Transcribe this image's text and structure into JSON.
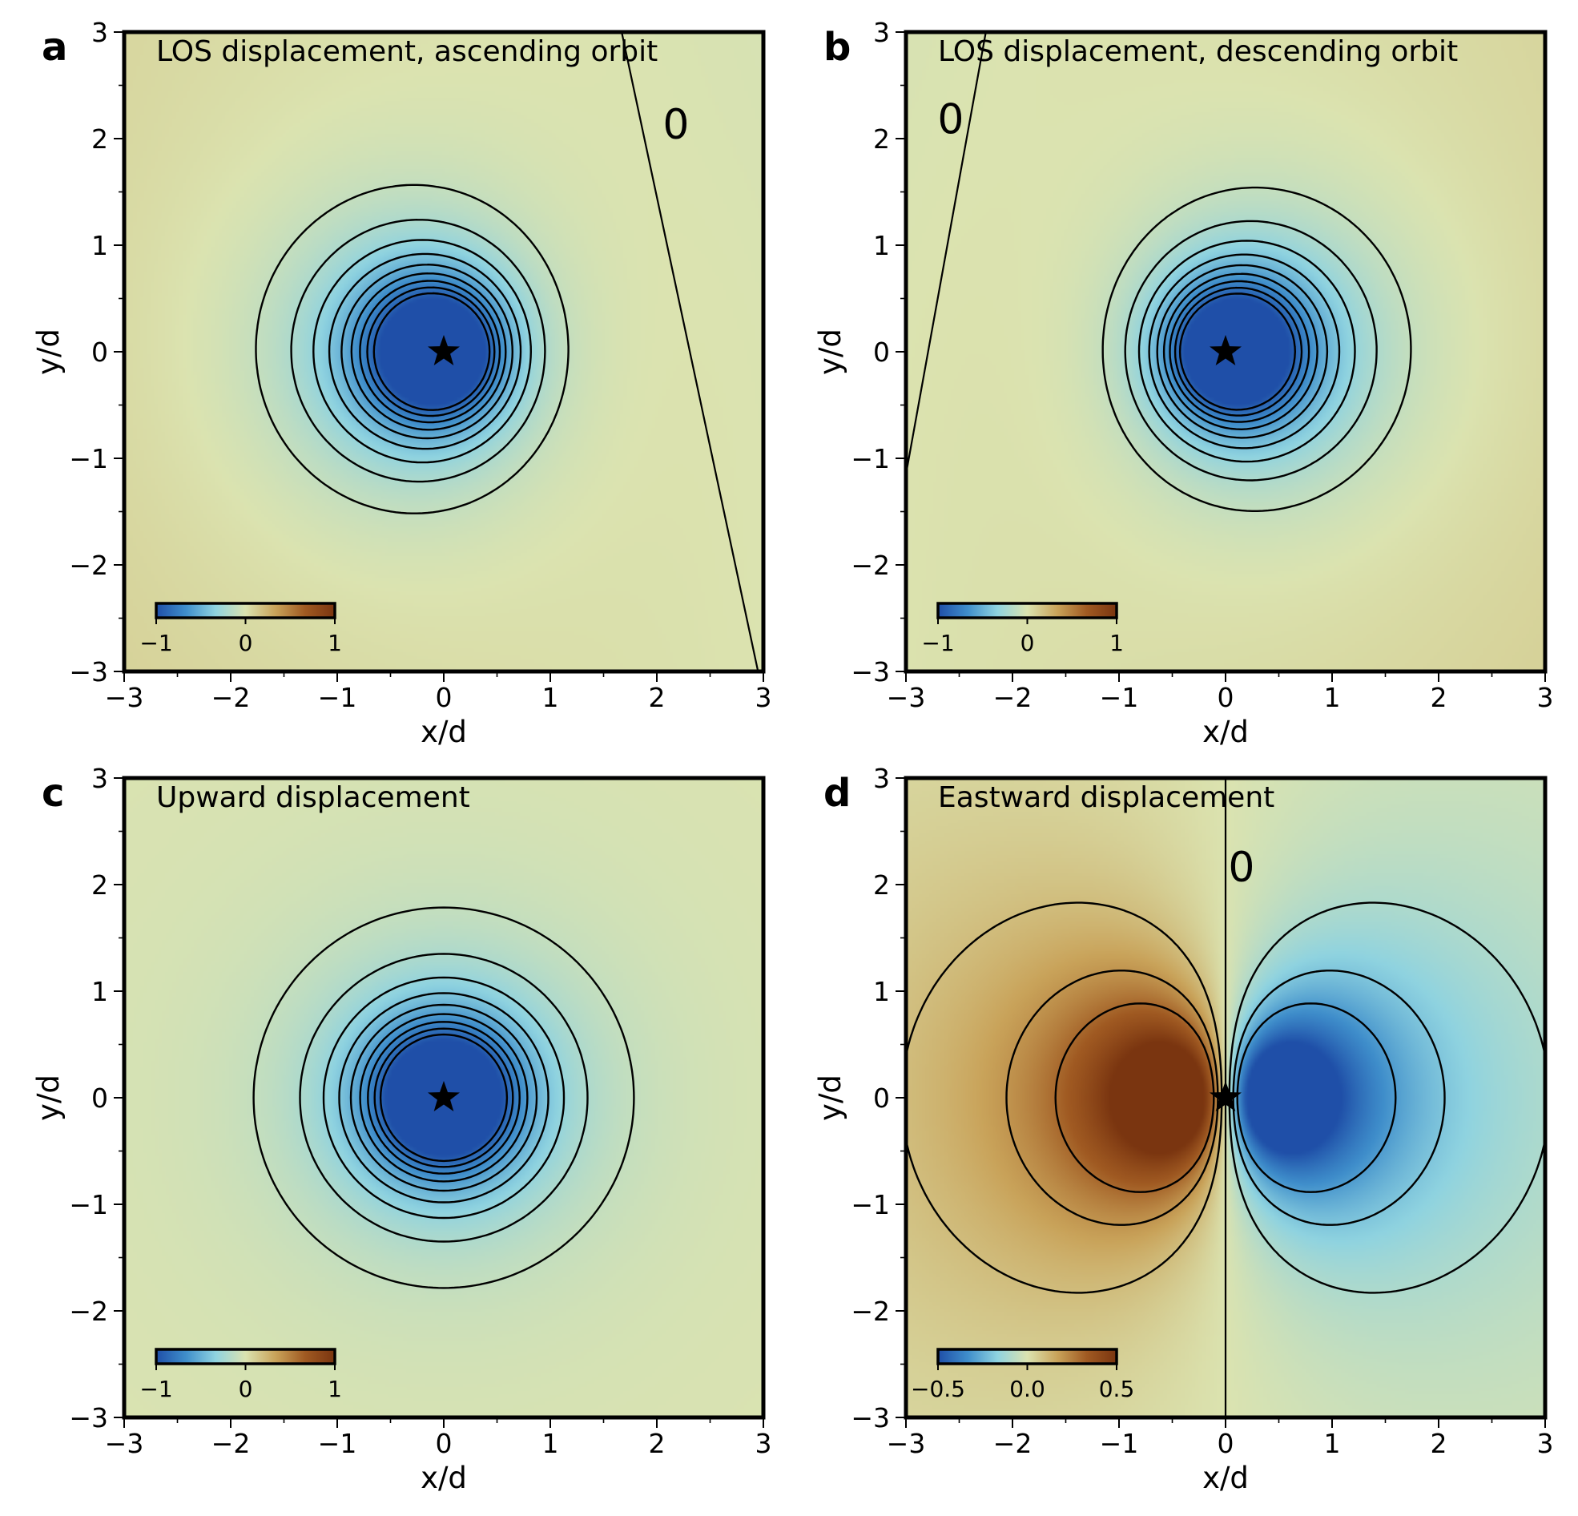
{
  "chart_data": [
    {
      "type": "heatmap",
      "panel": "a",
      "field": "los_ascending",
      "title": "LOS displacement, ascending orbit",
      "xlabel": "x/d",
      "ylabel": "y/d",
      "xlim": [
        -3,
        3
      ],
      "ylim": [
        -3,
        3
      ],
      "xticks": [
        -3,
        -2,
        -1,
        0,
        1,
        2,
        3
      ],
      "yticks": [
        -3,
        -2,
        -1,
        0,
        1,
        2,
        3
      ],
      "xtick_labels": [
        "−3",
        "−2",
        "−1",
        "0",
        "1",
        "2",
        "3"
      ],
      "ytick_labels": [
        "−3",
        "−2",
        "−1",
        "0",
        "1",
        "2",
        "3"
      ],
      "source": [
        0,
        0
      ],
      "zero_line": [
        [
          1.67,
          3
        ],
        [
          2.95,
          -3
        ]
      ],
      "contour_label": {
        "text": "0",
        "x": 2.18,
        "y": 2.0
      },
      "contour_levels": [
        -0.9,
        -0.8,
        -0.7,
        -0.6,
        -0.5,
        -0.4,
        -0.3,
        -0.2,
        -0.1
      ],
      "colorbar": {
        "min": -1,
        "max": 1,
        "tick_values": [
          -1,
          0,
          1
        ],
        "tick_labels": [
          "−1",
          "0",
          "1"
        ]
      },
      "colormap": [
        "#1f4fa8",
        "#3f8ecb",
        "#8fd3e0",
        "#dbe3b0",
        "#c9a35a",
        "#a05a22",
        "#7a3510"
      ]
    },
    {
      "type": "heatmap",
      "panel": "b",
      "field": "los_descending",
      "title": "LOS displacement, descending orbit",
      "xlabel": "x/d",
      "ylabel": "y/d",
      "xlim": [
        -3,
        3
      ],
      "ylim": [
        -3,
        3
      ],
      "xticks": [
        -3,
        -2,
        -1,
        0,
        1,
        2,
        3
      ],
      "yticks": [
        -3,
        -2,
        -1,
        0,
        1,
        2,
        3
      ],
      "xtick_labels": [
        "−3",
        "−2",
        "−1",
        "0",
        "1",
        "2",
        "3"
      ],
      "ytick_labels": [
        "−3",
        "−2",
        "−1",
        "0",
        "1",
        "2",
        "3"
      ],
      "source": [
        0,
        0
      ],
      "zero_line": [
        [
          -2.25,
          3
        ],
        [
          -3,
          -1.15
        ]
      ],
      "contour_label": {
        "text": "0",
        "x": -2.58,
        "y": 2.05
      },
      "contour_levels": [
        -0.9,
        -0.8,
        -0.7,
        -0.6,
        -0.5,
        -0.4,
        -0.3,
        -0.2,
        -0.1
      ],
      "colorbar": {
        "min": -1,
        "max": 1,
        "tick_values": [
          -1,
          0,
          1
        ],
        "tick_labels": [
          "−1",
          "0",
          "1"
        ]
      },
      "colormap": [
        "#1f4fa8",
        "#3f8ecb",
        "#8fd3e0",
        "#dbe3b0",
        "#c9a35a",
        "#a05a22",
        "#7a3510"
      ]
    },
    {
      "type": "heatmap",
      "panel": "c",
      "field": "upward",
      "title": "Upward displacement",
      "xlabel": "x/d",
      "ylabel": "y/d",
      "xlim": [
        -3,
        3
      ],
      "ylim": [
        -3,
        3
      ],
      "xticks": [
        -3,
        -2,
        -1,
        0,
        1,
        2,
        3
      ],
      "yticks": [
        -3,
        -2,
        -1,
        0,
        1,
        2,
        3
      ],
      "xtick_labels": [
        "−3",
        "−2",
        "−1",
        "0",
        "1",
        "2",
        "3"
      ],
      "ytick_labels": [
        "−3",
        "−2",
        "−1",
        "0",
        "1",
        "2",
        "3"
      ],
      "source": [
        0,
        0
      ],
      "contour_levels": [
        -0.9,
        -0.8,
        -0.7,
        -0.6,
        -0.5,
        -0.4,
        -0.3,
        -0.2,
        -0.1
      ],
      "colorbar": {
        "min": -1,
        "max": 1,
        "tick_values": [
          -1,
          0,
          1
        ],
        "tick_labels": [
          "−1",
          "0",
          "1"
        ]
      },
      "colormap": [
        "#1f4fa8",
        "#3f8ecb",
        "#8fd3e0",
        "#dbe3b0",
        "#c9a35a",
        "#a05a22",
        "#7a3510"
      ]
    },
    {
      "type": "heatmap",
      "panel": "d",
      "field": "eastward",
      "title": "Eastward displacement",
      "xlabel": "x/d",
      "ylabel": "y/d",
      "xlim": [
        -3,
        3
      ],
      "ylim": [
        -3,
        3
      ],
      "xticks": [
        -3,
        -2,
        -1,
        0,
        1,
        2,
        3
      ],
      "yticks": [
        -3,
        -2,
        -1,
        0,
        1,
        2,
        3
      ],
      "xtick_labels": [
        "−3",
        "−2",
        "−1",
        "0",
        "1",
        "2",
        "3"
      ],
      "ytick_labels": [
        "−3",
        "−2",
        "−1",
        "0",
        "1",
        "2",
        "3"
      ],
      "source": [
        0,
        0
      ],
      "zero_line": [
        [
          0,
          3
        ],
        [
          0,
          -3
        ]
      ],
      "contour_label": {
        "text": "0",
        "x": 0.15,
        "y": 2.03
      },
      "contour_levels": [
        -0.3,
        -0.2,
        -0.1,
        0.1,
        0.2,
        0.3
      ],
      "colorbar": {
        "min": -0.5,
        "max": 0.5,
        "tick_values": [
          -0.5,
          0,
          0.5
        ],
        "tick_labels": [
          "−0.5",
          "0.0",
          "0.5"
        ]
      },
      "colormap": [
        "#1f4fa8",
        "#3f8ecb",
        "#8fd3e0",
        "#dbe3b0",
        "#c9a35a",
        "#a05a22",
        "#7a3510"
      ]
    }
  ]
}
